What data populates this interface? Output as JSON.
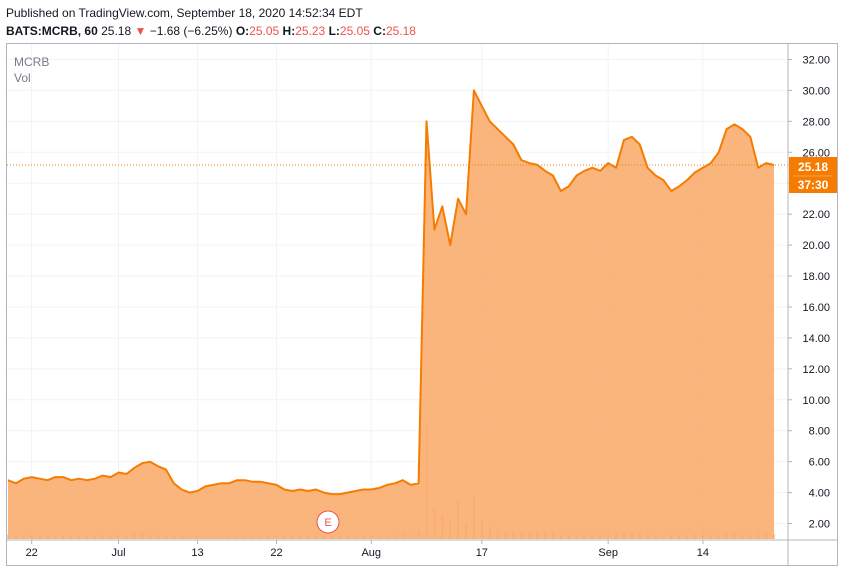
{
  "header": {
    "published": "Published on TradingView.com, September 18, 2020 14:52:34 EDT",
    "symbol": "BATS:MCRB, 60",
    "last": "25.18",
    "arrow": "▼",
    "change": "−1.68 (−6.25%)",
    "o_label": "O:",
    "o_value": "25.05",
    "h_label": "H:",
    "h_value": "25.23",
    "l_label": "L:",
    "l_value": "25.05",
    "c_label": "C:",
    "c_value": "25.18"
  },
  "legend": {
    "symbol": "MCRB",
    "volume": "Vol"
  },
  "price_label": {
    "price": "25.18",
    "countdown": "37:30"
  },
  "event_marker": "E",
  "colors": {
    "line": "#f57c00",
    "fill": "#f9a866",
    "price_tag": "#f57c00",
    "volume": "#f5c9a3",
    "grid": "#f0f3fa",
    "axis": "#b2b5be"
  },
  "chart_data": {
    "type": "area",
    "title": "",
    "xlabel": "",
    "ylabel": "",
    "ylim": [
      1,
      33
    ],
    "y_ticks": [
      "2.00",
      "4.00",
      "6.00",
      "8.00",
      "10.00",
      "12.00",
      "14.00",
      "16.00",
      "18.00",
      "20.00",
      "22.00",
      "24.00",
      "26.00",
      "28.00",
      "30.00",
      "32.00"
    ],
    "x_tick_labels": [
      "22",
      "Jul",
      "13",
      "22",
      "Aug",
      "17",
      "Sep",
      "14"
    ],
    "x_tick_index": [
      3,
      14,
      24,
      34,
      46,
      60,
      76,
      88
    ],
    "last_price": 25.18,
    "series": [
      {
        "values": [
          4.8,
          4.6,
          4.9,
          5.0,
          4.9,
          4.8,
          5.0,
          5.0,
          4.8,
          4.9,
          4.8,
          4.9,
          5.1,
          5.0,
          5.3,
          5.2,
          5.6,
          5.9,
          6.0,
          5.7,
          5.5,
          4.6,
          4.2,
          4.0,
          4.1,
          4.4,
          4.5,
          4.6,
          4.6,
          4.8,
          4.8,
          4.7,
          4.7,
          4.6,
          4.5,
          4.2,
          4.1,
          4.2,
          4.1,
          4.2,
          4.0,
          3.9,
          3.9,
          4.0,
          4.1,
          4.2,
          4.2,
          4.3,
          4.5,
          4.6,
          4.8,
          4.5,
          4.6,
          28.0,
          21.0,
          22.5,
          20.0,
          23.0,
          22.0,
          30.0,
          29.0,
          28.0,
          27.5,
          27.0,
          26.5,
          25.5,
          25.3,
          25.2,
          24.8,
          24.5,
          23.5,
          23.8,
          24.5,
          24.8,
          25.0,
          24.8,
          25.3,
          25.0,
          26.8,
          27.0,
          26.5,
          25.0,
          24.5,
          24.2,
          23.5,
          23.8,
          24.2,
          24.7,
          25.0,
          25.3,
          26.0,
          27.5,
          27.8,
          27.5,
          27.0,
          25.0,
          25.3,
          25.18
        ]
      }
    ],
    "volume": [
      0.3,
      0.2,
      0.2,
      0.3,
      0.2,
      0.2,
      0.2,
      0.3,
      0.2,
      0.2,
      0.2,
      0.2,
      0.3,
      0.2,
      0.3,
      0.3,
      0.4,
      0.4,
      0.3,
      0.3,
      0.2,
      0.2,
      0.2,
      0.2,
      0.2,
      0.2,
      0.2,
      0.2,
      0.2,
      0.2,
      0.2,
      0.2,
      0.2,
      0.2,
      0.2,
      0.2,
      0.2,
      0.2,
      0.2,
      0.2,
      0.2,
      0.2,
      0.2,
      0.2,
      0.2,
      0.2,
      0.2,
      0.2,
      0.2,
      0.3,
      0.4,
      0.3,
      0.5,
      7.4,
      2.0,
      1.5,
      1.2,
      2.5,
      1.0,
      2.8,
      1.2,
      0.8,
      0.6,
      0.5,
      0.5,
      0.4,
      0.4,
      0.4,
      0.4,
      0.4,
      0.3,
      0.3,
      0.3,
      0.3,
      0.3,
      0.3,
      0.3,
      0.3,
      0.5,
      0.4,
      0.4,
      0.3,
      0.3,
      0.3,
      0.3,
      0.3,
      0.3,
      0.3,
      0.3,
      0.3,
      0.3,
      0.4,
      0.4,
      0.3,
      0.3,
      0.6,
      0.4,
      0.3
    ]
  }
}
